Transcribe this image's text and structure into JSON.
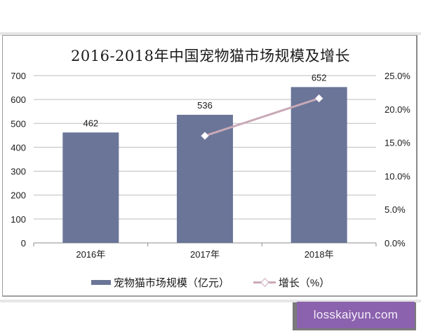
{
  "chart_data": {
    "type": "bar",
    "title": "2016-2018年中国宠物猫市场规模及增长",
    "categories": [
      "2016年",
      "2017年",
      "2018年"
    ],
    "series": [
      {
        "name": "宠物猫市场规模（亿元）",
        "type": "bar",
        "axis": "left",
        "values": [
          462,
          536,
          652
        ],
        "value_labels": [
          "462",
          "536",
          "652"
        ],
        "color": "#6a7598"
      },
      {
        "name": "增长（%）",
        "type": "line",
        "axis": "right",
        "values": [
          null,
          16.0,
          21.6
        ],
        "marker": "diamond",
        "color": "#c9a9b7"
      }
    ],
    "xlabel": "",
    "ylabel": "",
    "ylim": [
      0,
      700
    ],
    "y_ticks": [
      "0",
      "100",
      "200",
      "300",
      "400",
      "500",
      "600",
      "700"
    ],
    "y2lim": [
      0,
      25
    ],
    "y2_ticks": [
      "0.0%",
      "5.0%",
      "10.0%",
      "15.0%",
      "20.0%",
      "25.0%"
    ],
    "grid": true,
    "legend_position": "bottom"
  },
  "legend": {
    "bar_label": "宠物猫市场规模（亿元）",
    "line_label": "增长（%）"
  },
  "watermark": {
    "text": "losskaiyun.com",
    "color": "#8b62ad"
  }
}
